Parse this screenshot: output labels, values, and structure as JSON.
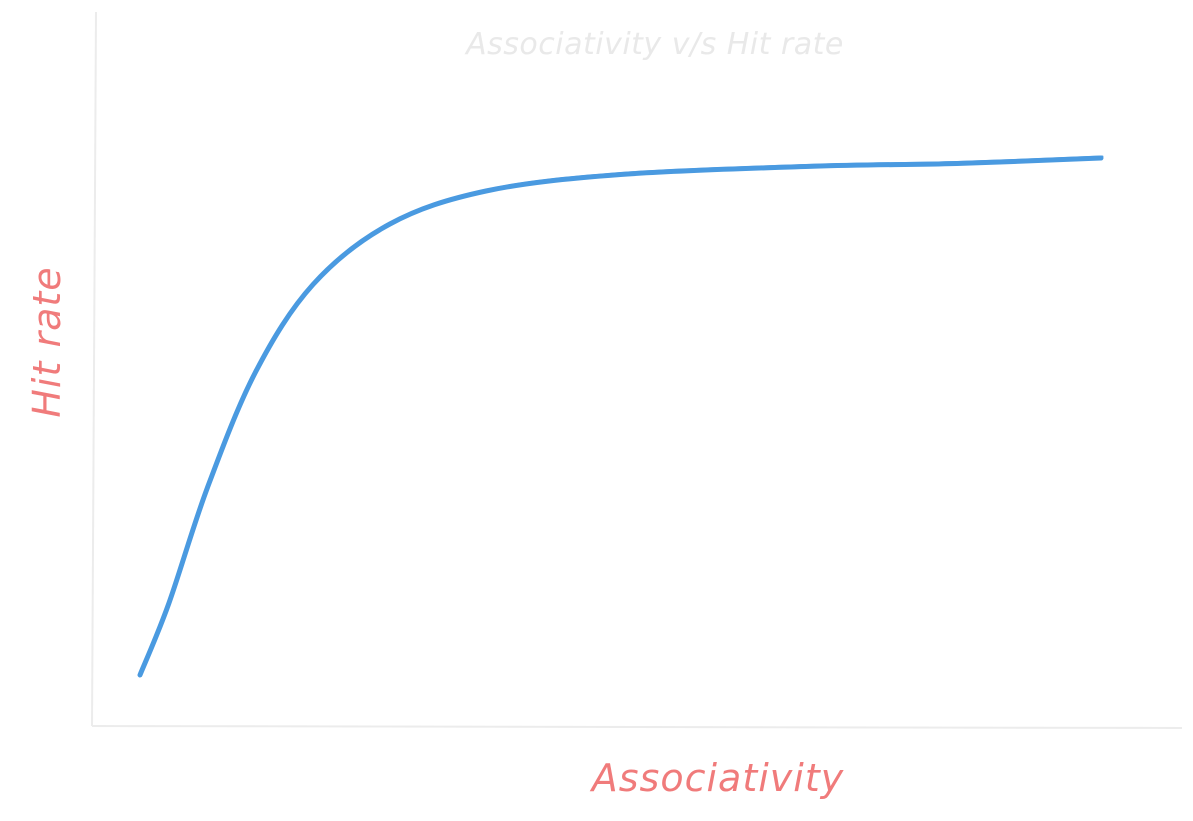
{
  "chart_data": {
    "type": "line",
    "title": "Associativity v/s Hit rate",
    "xlabel": "Associativity",
    "ylabel": "Hit rate",
    "grid": false,
    "series": [
      {
        "color": "#4a9ae0",
        "points": [
          [
            0.0,
            0.0
          ],
          [
            0.03,
            0.13
          ],
          [
            0.07,
            0.34
          ],
          [
            0.12,
            0.55
          ],
          [
            0.18,
            0.71
          ],
          [
            0.26,
            0.82
          ],
          [
            0.36,
            0.88
          ],
          [
            0.5,
            0.91
          ],
          [
            0.7,
            0.925
          ],
          [
            0.85,
            0.93
          ],
          [
            1.0,
            0.94
          ]
        ]
      }
    ],
    "xlim": [
      0,
      1
    ],
    "ylim": [
      0,
      1
    ]
  }
}
